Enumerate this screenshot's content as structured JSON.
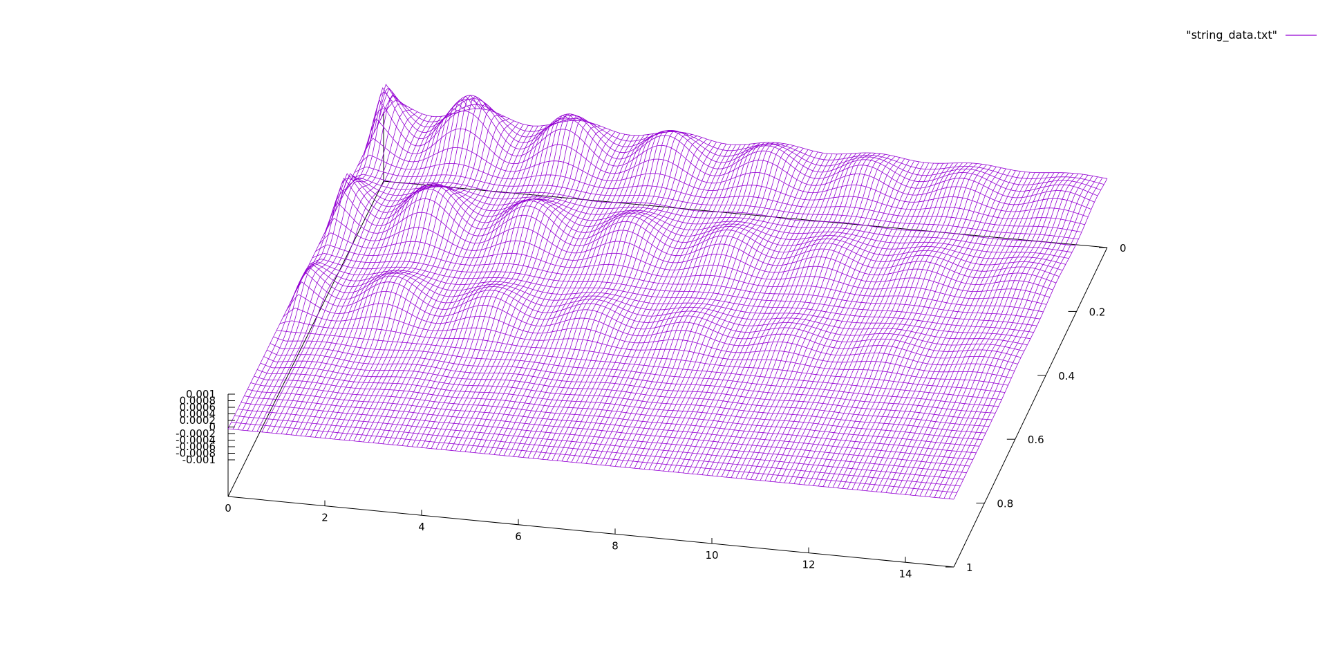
{
  "chart_data": {
    "type": "surface-3d",
    "title": "",
    "legend": {
      "label": "\"string_data.txt\"",
      "placement": "top-right"
    },
    "color": "#9400d3",
    "x_axis": {
      "range": [
        0,
        15
      ],
      "ticks": [
        "0",
        "2",
        "4",
        "6",
        "8",
        "10",
        "12",
        "14"
      ]
    },
    "y_axis": {
      "range": [
        0,
        1
      ],
      "ticks": [
        "0",
        "0.2",
        "0.4",
        "0.6",
        "0.8",
        "1"
      ]
    },
    "z_axis": {
      "range": [
        -0.001,
        0.001
      ],
      "ticks": [
        "0.001",
        "0.0008",
        "0.0006",
        "0.0004",
        "0.0002",
        "0",
        "-0.0002",
        "-0.0004",
        "-0.0006",
        "-0.0008",
        "-0.001"
      ]
    },
    "series": [
      {
        "name": "\"string_data.txt\""
      }
    ],
    "description_of_surface": "standing/travelling wave on a string: 3 ridges along y (crests near y=0.1, 0.35, 0.6) damped oscillation along x with amplitude decaying toward x=15"
  }
}
